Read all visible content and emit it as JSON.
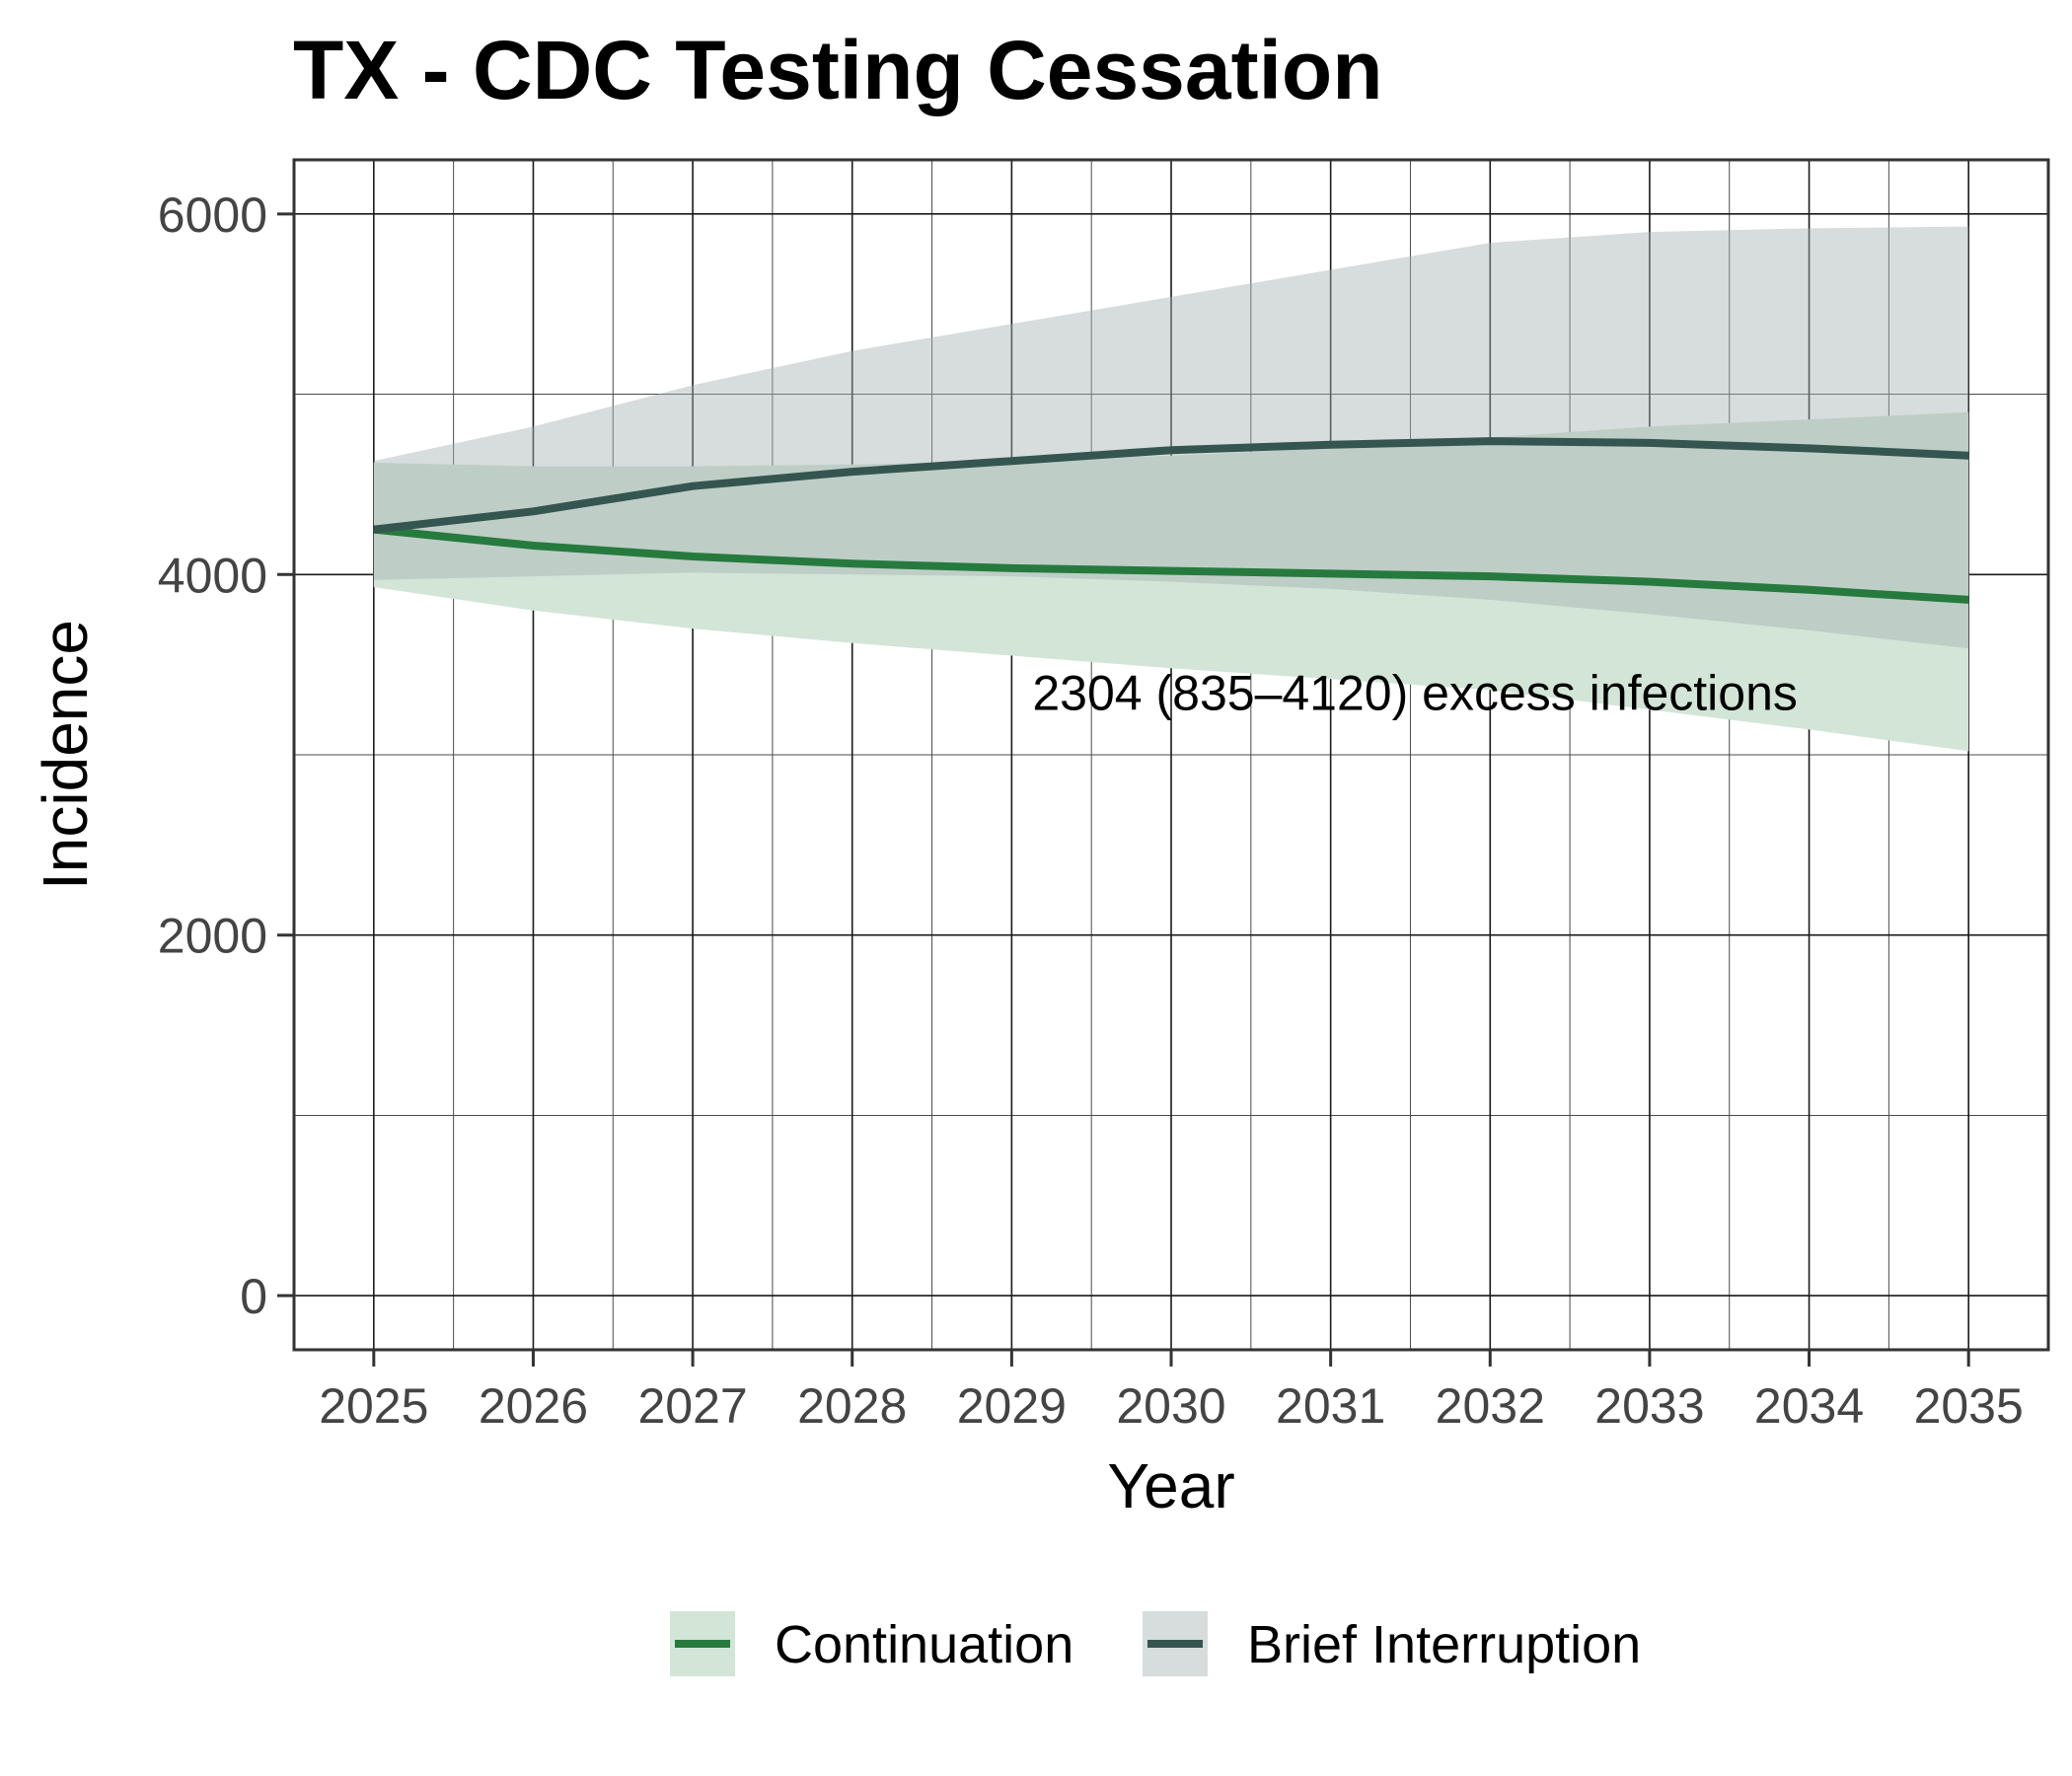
{
  "chart_data": {
    "type": "line",
    "title": "TX - CDC Testing Cessation",
    "xlabel": "Year",
    "ylabel": "Incidence",
    "x": [
      2025,
      2026,
      2027,
      2028,
      2029,
      2030,
      2031,
      2032,
      2033,
      2034,
      2035
    ],
    "xlim": [
      2024.5,
      2035.5
    ],
    "ylim": [
      -300,
      6300
    ],
    "yticks": [
      0,
      2000,
      4000,
      6000
    ],
    "grid": true,
    "legend_position": "bottom",
    "series": [
      {
        "name": "Continuation",
        "color": "#267A3E",
        "band_color": "#D2E5D7",
        "values": [
          4250,
          4160,
          4100,
          4060,
          4035,
          4020,
          4005,
          3990,
          3960,
          3915,
          3860
        ],
        "lower": [
          3930,
          3800,
          3700,
          3620,
          3550,
          3480,
          3420,
          3360,
          3250,
          3140,
          3020
        ],
        "upper": [
          4620,
          4600,
          4600,
          4610,
          4630,
          4660,
          4700,
          4760,
          4820,
          4860,
          4900
        ]
      },
      {
        "name": "Brief Interruption",
        "color": "#355550",
        "band_color": "#A6B2B2",
        "values": [
          4250,
          4350,
          4490,
          4570,
          4630,
          4690,
          4720,
          4740,
          4730,
          4700,
          4660
        ],
        "lower": [
          3970,
          3990,
          4010,
          4000,
          3990,
          3960,
          3920,
          3860,
          3780,
          3690,
          3590
        ],
        "upper": [
          4630,
          4820,
          5050,
          5240,
          5390,
          5540,
          5690,
          5840,
          5900,
          5920,
          5930
        ]
      }
    ],
    "annotation": {
      "text": "2304 (835–4120) excess infections",
      "x": 2029.13,
      "y": 3250
    }
  }
}
